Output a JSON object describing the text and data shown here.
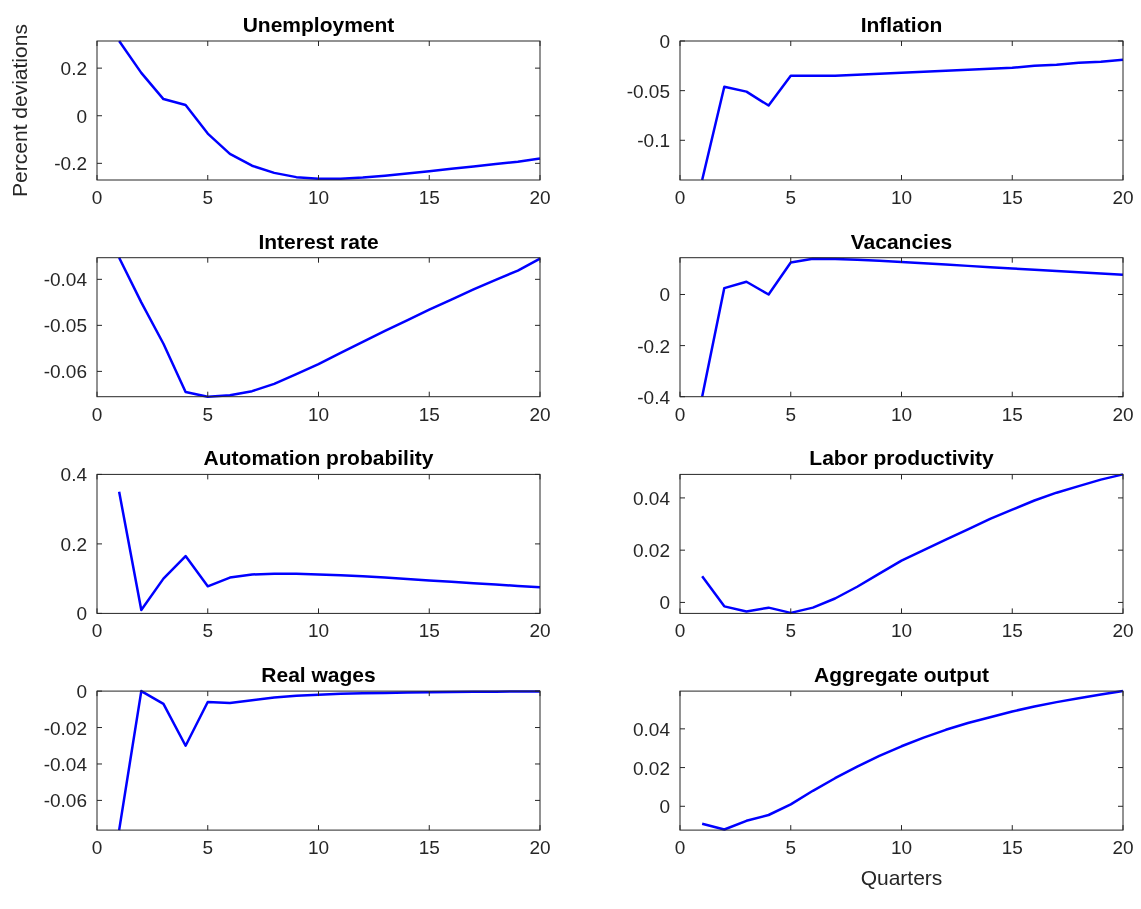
{
  "chart_data": [
    {
      "type": "line",
      "title": "Unemployment",
      "ylabel": "Percent deviations",
      "x": [
        1,
        2,
        3,
        4,
        5,
        6,
        7,
        8,
        9,
        10,
        11,
        12,
        13,
        14,
        15,
        16,
        17,
        18,
        19,
        20
      ],
      "series": [
        {
          "color": "#0000ff",
          "values": [
            0.314,
            0.18,
            0.07,
            0.045,
            -0.075,
            -0.16,
            -0.21,
            -0.24,
            -0.258,
            -0.265,
            -0.265,
            -0.26,
            -0.252,
            -0.243,
            -0.233,
            -0.223,
            -0.213,
            -0.203,
            -0.193,
            -0.18
          ]
        }
      ],
      "xlim": [
        0,
        20
      ],
      "xticks": [
        0,
        5,
        10,
        15,
        20
      ],
      "ylim": [
        -0.27,
        0.314
      ],
      "yticks": [
        -0.2,
        0,
        0.2
      ],
      "grid": false
    },
    {
      "type": "line",
      "title": "Inflation",
      "x": [
        1,
        2,
        3,
        4,
        5,
        6,
        7,
        8,
        9,
        10,
        11,
        12,
        13,
        14,
        15,
        16,
        17,
        18,
        19,
        20
      ],
      "series": [
        {
          "color": "#0000ff",
          "values": [
            -0.14,
            -0.046,
            -0.051,
            -0.065,
            -0.035,
            -0.035,
            -0.035,
            -0.034,
            -0.033,
            -0.032,
            -0.031,
            -0.03,
            -0.029,
            -0.028,
            -0.027,
            -0.025,
            -0.024,
            -0.022,
            -0.021,
            -0.019
          ]
        }
      ],
      "xlim": [
        0,
        20
      ],
      "xticks": [
        0,
        5,
        10,
        15,
        20
      ],
      "ylim": [
        -0.14,
        0
      ],
      "yticks": [
        -0.1,
        -0.05,
        0
      ],
      "grid": false
    },
    {
      "type": "line",
      "title": "Interest rate",
      "x": [
        1,
        2,
        3,
        4,
        5,
        6,
        7,
        8,
        9,
        10,
        11,
        12,
        13,
        14,
        15,
        16,
        17,
        18,
        19,
        20
      ],
      "series": [
        {
          "color": "#0000ff",
          "values": [
            -0.0353,
            -0.045,
            -0.054,
            -0.0645,
            -0.0655,
            -0.0652,
            -0.0643,
            -0.0627,
            -0.0606,
            -0.0584,
            -0.056,
            -0.0536,
            -0.0512,
            -0.0489,
            -0.0466,
            -0.0444,
            -0.0422,
            -0.0401,
            -0.0381,
            -0.0355
          ]
        }
      ],
      "xlim": [
        0,
        20
      ],
      "xticks": [
        0,
        5,
        10,
        15,
        20
      ],
      "ylim": [
        -0.0655,
        -0.0353
      ],
      "yticks": [
        -0.06,
        -0.05,
        -0.04
      ],
      "grid": false
    },
    {
      "type": "line",
      "title": "Vacancies",
      "x": [
        1,
        2,
        3,
        4,
        5,
        6,
        7,
        8,
        9,
        10,
        11,
        12,
        13,
        14,
        15,
        16,
        17,
        18,
        19,
        20
      ],
      "series": [
        {
          "color": "#0000ff",
          "values": [
            -0.4,
            0.025,
            0.05,
            0,
            0.125,
            0.14,
            0.139,
            0.136,
            0.132,
            0.127,
            0.122,
            0.117,
            0.112,
            0.107,
            0.102,
            0.097,
            0.092,
            0.087,
            0.082,
            0.077
          ]
        }
      ],
      "xlim": [
        0,
        20
      ],
      "xticks": [
        0,
        5,
        10,
        15,
        20
      ],
      "ylim": [
        -0.4,
        0.144
      ],
      "yticks": [
        -0.4,
        -0.2,
        0
      ],
      "grid": false
    },
    {
      "type": "line",
      "title": "Automation probability",
      "x": [
        1,
        2,
        3,
        4,
        5,
        6,
        7,
        8,
        9,
        10,
        11,
        12,
        13,
        14,
        15,
        16,
        17,
        18,
        19,
        20
      ],
      "series": [
        {
          "color": "#0000ff",
          "values": [
            0.35,
            0.01,
            0.1,
            0.165,
            0.078,
            0.103,
            0.112,
            0.114,
            0.114,
            0.112,
            0.11,
            0.107,
            0.103,
            0.099,
            0.095,
            0.091,
            0.087,
            0.083,
            0.079,
            0.075
          ]
        }
      ],
      "xlim": [
        0,
        20
      ],
      "xticks": [
        0,
        5,
        10,
        15,
        20
      ],
      "ylim": [
        0,
        0.4
      ],
      "yticks": [
        0,
        0.2,
        0.4
      ],
      "grid": false
    },
    {
      "type": "line",
      "title": "Labor productivity",
      "x": [
        1,
        2,
        3,
        4,
        5,
        6,
        7,
        8,
        9,
        10,
        11,
        12,
        13,
        14,
        15,
        16,
        17,
        18,
        19,
        20
      ],
      "series": [
        {
          "color": "#0000ff",
          "values": [
            0.01,
            -0.0015,
            -0.0035,
            -0.002,
            -0.004,
            -0.002,
            0.0015,
            0.006,
            0.011,
            0.016,
            0.02,
            0.024,
            0.028,
            0.032,
            0.0355,
            0.039,
            0.042,
            0.0445,
            0.047,
            0.049
          ]
        }
      ],
      "xlim": [
        0,
        20
      ],
      "xticks": [
        0,
        5,
        10,
        15,
        20
      ],
      "ylim": [
        -0.0042,
        0.049
      ],
      "yticks": [
        0,
        0.02,
        0.04
      ],
      "grid": false
    },
    {
      "type": "line",
      "title": "Real wages",
      "x": [
        1,
        2,
        3,
        4,
        5,
        6,
        7,
        8,
        9,
        10,
        11,
        12,
        13,
        14,
        15,
        16,
        17,
        18,
        19,
        20
      ],
      "series": [
        {
          "color": "#0000ff",
          "values": [
            -0.0763,
            0,
            -0.007,
            -0.03,
            -0.006,
            -0.0065,
            -0.005,
            -0.0035,
            -0.0025,
            -0.002,
            -0.0015,
            -0.0012,
            -0.001,
            -0.0008,
            -0.0006,
            -0.0005,
            -0.0004,
            -0.0003,
            -0.0002,
            -0.0002
          ]
        }
      ],
      "xlim": [
        0,
        20
      ],
      "xticks": [
        0,
        5,
        10,
        15,
        20
      ],
      "ylim": [
        -0.0763,
        0
      ],
      "yticks": [
        -0.06,
        -0.04,
        -0.02,
        0
      ],
      "grid": false
    },
    {
      "type": "line",
      "title": "Aggregate output",
      "xlabel": "Quarters",
      "x": [
        1,
        2,
        3,
        4,
        5,
        6,
        7,
        8,
        9,
        10,
        11,
        12,
        13,
        14,
        15,
        16,
        17,
        18,
        19,
        20
      ],
      "series": [
        {
          "color": "#0000ff",
          "values": [
            -0.009,
            -0.012,
            -0.0075,
            -0.0045,
            0.001,
            0.008,
            0.0145,
            0.0205,
            0.026,
            0.031,
            0.0355,
            0.0395,
            0.043,
            0.046,
            0.049,
            0.0515,
            0.0538,
            0.0558,
            0.0577,
            0.0595
          ]
        }
      ],
      "xlim": [
        0,
        20
      ],
      "xticks": [
        0,
        5,
        10,
        15,
        20
      ],
      "ylim": [
        -0.0123,
        0.0595
      ],
      "yticks": [
        0,
        0.02,
        0.04
      ],
      "grid": false
    }
  ]
}
